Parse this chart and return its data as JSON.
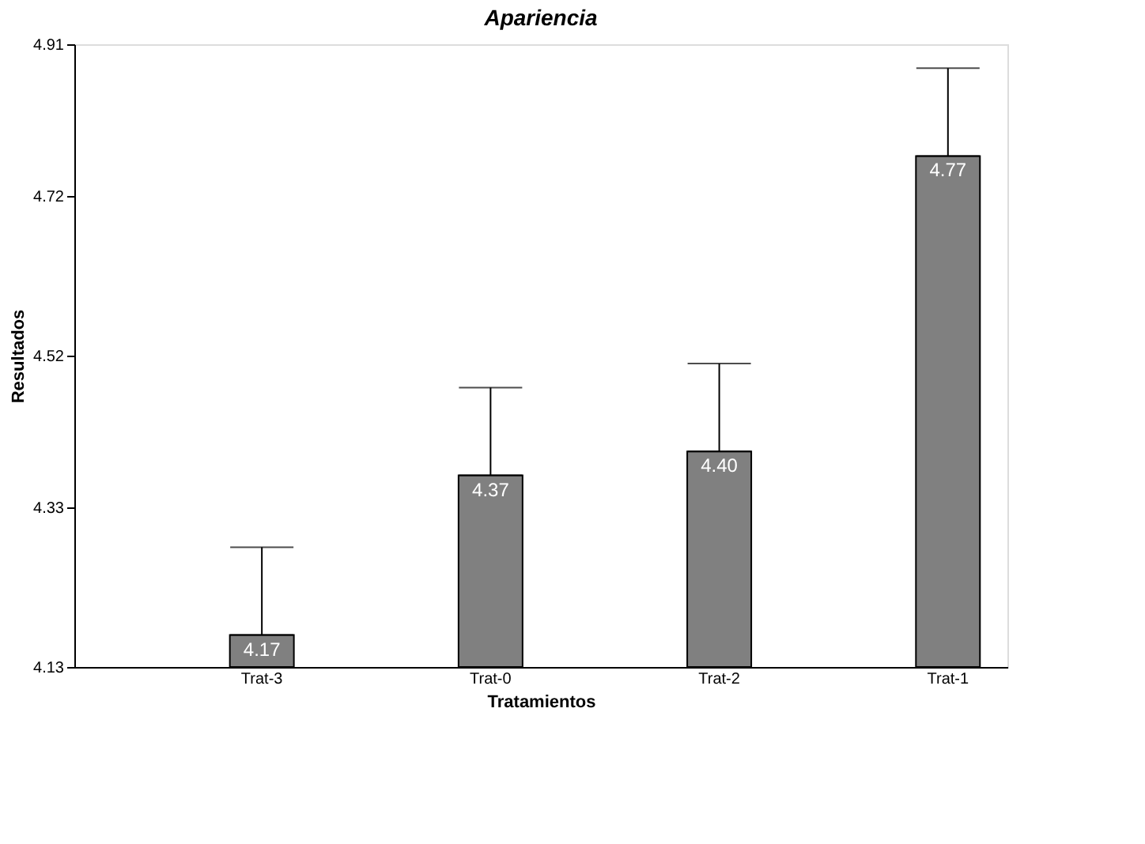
{
  "chart_data": {
    "type": "bar",
    "title": "Apariencia",
    "xlabel": "Tratamientos",
    "ylabel": "Resultados",
    "categories": [
      "Trat-3",
      "Trat-0",
      "Trat-2",
      "Trat-1"
    ],
    "values": [
      4.17,
      4.37,
      4.4,
      4.77
    ],
    "errors": [
      [
        4.17,
        4.28
      ],
      [
        4.37,
        4.48
      ],
      [
        4.4,
        4.51
      ],
      [
        4.77,
        4.88
      ]
    ],
    "color": "#808080",
    "ylim": [
      4.13,
      4.91
    ],
    "yticks": [
      4.13,
      4.33,
      4.52,
      4.72,
      4.91
    ],
    "value_labels": [
      "4.17",
      "4.37",
      "4.40",
      "4.77"
    ],
    "grid": false
  }
}
